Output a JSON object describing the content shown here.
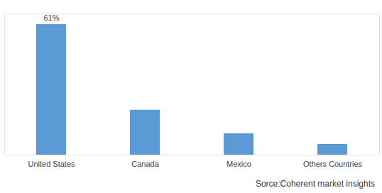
{
  "chart_data": {
    "type": "bar",
    "categories": [
      "United States",
      "Canada",
      "Mexico",
      "Others Countries"
    ],
    "values": [
      61,
      21,
      10,
      5
    ],
    "value_labels": [
      "61%",
      null,
      null,
      null
    ],
    "data_labels": true,
    "color": "#5b9bd5",
    "ylim": [
      0,
      66
    ],
    "yticks": [
      0
    ],
    "tick_labels": "x",
    "caption": "Sorce:Coherent market insights"
  }
}
